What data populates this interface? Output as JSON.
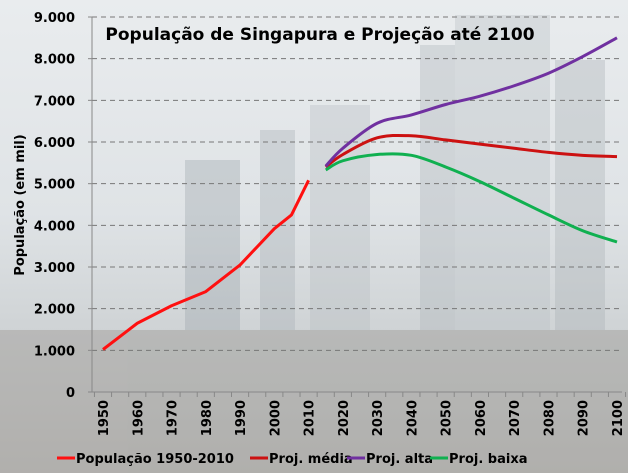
{
  "chart_data": {
    "type": "line",
    "title": "População de Singapura e Projeção até 2100",
    "xlabel": "",
    "ylabel": "População (em mil)",
    "ylim": [
      0,
      9000
    ],
    "yticks": [
      "0",
      "1.000",
      "2.000",
      "3.000",
      "4.000",
      "5.000",
      "6.000",
      "7.000",
      "8.000",
      "9.000"
    ],
    "ytick_values": [
      0,
      1000,
      2000,
      3000,
      4000,
      5000,
      6000,
      7000,
      8000,
      9000
    ],
    "xticks": [
      "1950",
      "1960",
      "1970",
      "1980",
      "1990",
      "2000",
      "2010",
      "2020",
      "2030",
      "2040",
      "2050",
      "2060",
      "2070",
      "2080",
      "2090",
      "2100"
    ],
    "xlim": [
      1950,
      2100
    ],
    "grid": "horizontal dashed",
    "legend_position": "bottom",
    "series": [
      {
        "name": "População 1950-2010",
        "color": "#ff1010",
        "x": [
          1950,
          1960,
          1970,
          1980,
          1990,
          2000,
          2005,
          2010
        ],
        "values": [
          1020,
          1650,
          2070,
          2410,
          3050,
          3920,
          4250,
          5080
        ]
      },
      {
        "name": "Proj. média",
        "color": "#cc1111",
        "x": [
          2015,
          2020,
          2030,
          2040,
          2050,
          2060,
          2070,
          2080,
          2090,
          2100
        ],
        "values": [
          5400,
          5700,
          6100,
          6150,
          6050,
          5950,
          5850,
          5750,
          5680,
          5650
        ]
      },
      {
        "name": "Proj. alta",
        "color": "#7030a0",
        "x": [
          2015,
          2020,
          2030,
          2040,
          2050,
          2060,
          2070,
          2080,
          2090,
          2100
        ],
        "values": [
          5420,
          5850,
          6450,
          6650,
          6900,
          7100,
          7350,
          7650,
          8050,
          8500
        ]
      },
      {
        "name": "Proj. baixa",
        "color": "#10b050",
        "x": [
          2015,
          2020,
          2030,
          2040,
          2050,
          2060,
          2070,
          2080,
          2090,
          2100
        ],
        "values": [
          5330,
          5550,
          5700,
          5680,
          5400,
          5050,
          4650,
          4250,
          3870,
          3600
        ]
      }
    ]
  }
}
